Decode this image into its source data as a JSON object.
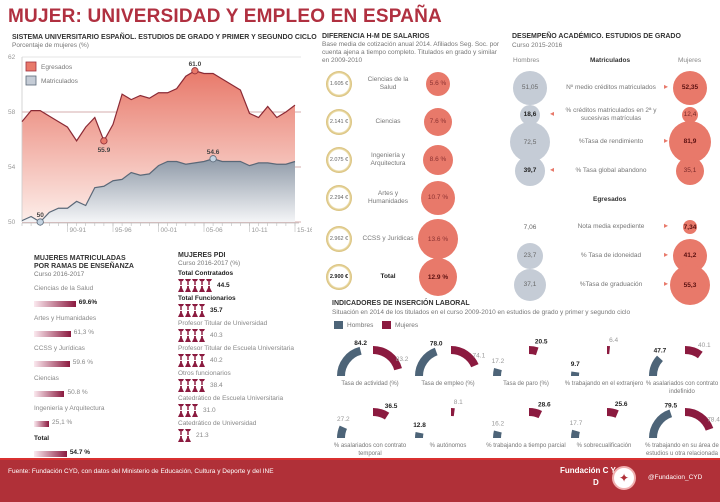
{
  "title": "MUJER: UNIVERSIDAD Y EMPLEO EN ESPAÑA",
  "colors": {
    "accent": "#b03040",
    "egresados": "#e8796a",
    "matriculados": "#8f9aa8",
    "hombres": "#4d6478",
    "mujeres": "#8b1a3f",
    "footer": "#b03038"
  },
  "section1": {
    "title": "SISTEMA UNIVERSITARIO ESPAÑOL. ESTUDIOS DE GRADO Y PRIMER Y SEGUNDO CICLO",
    "subtitle": "Porcentaje de mujeres (%)"
  },
  "chart_data": {
    "type": "area",
    "title": "SISTEMA UNIVERSITARIO ESPAÑOL. ESTUDIOS DE GRADO Y PRIMER Y SEGUNDO CICLO",
    "ylabel": "Porcentaje de mujeres (%)",
    "xlabel": "",
    "ylim": [
      50,
      62
    ],
    "yticks": [
      "62",
      "58",
      "54",
      "50"
    ],
    "ytick_values": [
      62,
      58,
      54,
      50
    ],
    "xticks": [
      "90-91",
      "95-96",
      "00-01",
      "05-06",
      "10-11",
      "15-16"
    ],
    "xtick_index": [
      5,
      10,
      15,
      20,
      25,
      30
    ],
    "grid": true,
    "legend": "top-left",
    "x": [
      "85-86",
      "86-87",
      "87-88",
      "88-89",
      "89-90",
      "90-91",
      "91-92",
      "92-93",
      "93-94",
      "94-95",
      "95-96",
      "96-97",
      "97-98",
      "98-99",
      "99-00",
      "00-01",
      "01-02",
      "02-03",
      "03-04",
      "04-05",
      "05-06",
      "06-07",
      "07-08",
      "08-09",
      "09-10",
      "10-11",
      "11-12",
      "12-13",
      "13-14",
      "14-15",
      "15-16"
    ],
    "series": [
      {
        "name": "Egresados",
        "values": [
          57.3,
          58.1,
          58.1,
          57.7,
          57.3,
          56.9,
          55.9,
          56.9,
          57.6,
          55.9,
          57.1,
          59.3,
          58.9,
          59.2,
          59.0,
          59.4,
          59.4,
          59.7,
          60.6,
          61.0,
          60.8,
          60.8,
          60.4,
          60.0,
          59.6,
          57.9,
          57.6,
          58.4,
          57.6,
          58.0,
          58.5
        ],
        "annotations": [
          {
            "index": 9,
            "label": "55.9"
          },
          {
            "index": 19,
            "label": "61.0"
          }
        ]
      },
      {
        "name": "Matriculados",
        "values": [
          50.1,
          50.4,
          50.0,
          50.7,
          51.0,
          51.0,
          51.5,
          51.2,
          52.5,
          52.6,
          53.0,
          53.1,
          53.6,
          53.4,
          53.5,
          54.1,
          54.4,
          54.4,
          54.2,
          54.3,
          54.4,
          54.6,
          54.4,
          54.4,
          54.4,
          54.1,
          54.3,
          54.3,
          54.2,
          54.2,
          54.4
        ],
        "annotations": [
          {
            "index": 2,
            "label": "50"
          },
          {
            "index": 21,
            "label": "54.6"
          }
        ]
      }
    ]
  },
  "salarios": {
    "title": "DIFERENCIA H-M DE SALARIOS",
    "subtitle": "Base media de cotización anual 2014. Afiliados Seg. Soc. por cuenta ajena a tiempo completo. Titulados en grado y similar en 2009-2010",
    "rows": [
      {
        "amount": "1.605 €",
        "label": "Ciencias de la Salud",
        "pct": "5.6 %",
        "value": 5.6,
        "bold": false
      },
      {
        "amount": "2.141 €",
        "label": "Ciencias",
        "pct": "7.6 %",
        "value": 7.6,
        "bold": false
      },
      {
        "amount": "2.075 €",
        "label": "Ingeniería y Arquitectura",
        "pct": "8.6 %",
        "value": 8.6,
        "bold": false
      },
      {
        "amount": "2.294 €",
        "label": "Artes y Humanidades",
        "pct": "10.7 %",
        "value": 10.7,
        "bold": false
      },
      {
        "amount": "2.962 €",
        "label": "CCSS y Jurídicas",
        "pct": "13.6 %",
        "value": 13.6,
        "bold": false
      },
      {
        "amount": "2.900 €",
        "label": "Total",
        "pct": "12.9 %",
        "value": 12.9,
        "bold": true
      }
    ]
  },
  "desempeno": {
    "title": "DESEMPEÑO ACADÉMICO. ESTUDIOS DE GRADO",
    "subtitle": "Curso 2015-2016",
    "col_hombres": "Hombres",
    "col_mujeres": "Mujeres",
    "group1": "Matriculados",
    "group2": "Egresados",
    "rows": [
      {
        "label": "Nº medio créditos matriculados",
        "hombres": "51,05",
        "mujeres": "52,35",
        "h_val": 51.05,
        "m_val": 52.35,
        "winner": "mujeres"
      },
      {
        "label": "% créditos matriculados en 2ª y sucesivas matrículas",
        "hombres": "18,6",
        "mujeres": "12,4",
        "h_val": 18.6,
        "m_val": 12.4,
        "winner": "hombres"
      },
      {
        "label": "%Tasa de rendimiento",
        "hombres": "72,5",
        "mujeres": "81,9",
        "h_val": 72.5,
        "m_val": 81.9,
        "winner": "mujeres"
      },
      {
        "label": "% Tasa global abandono",
        "hombres": "39,7",
        "mujeres": "35,1",
        "h_val": 39.7,
        "m_val": 35.1,
        "winner": "hombres"
      },
      {
        "label": "Nota media expediente",
        "hombres": "7,06",
        "mujeres": "7,34",
        "h_val": 7.06,
        "m_val": 7.34,
        "winner": "mujeres"
      },
      {
        "label": "% Tasa de idoneidad",
        "hombres": "23,7",
        "mujeres": "41,2",
        "h_val": 23.7,
        "m_val": 41.2,
        "winner": "mujeres"
      },
      {
        "label": "%Tasa de graduación",
        "hombres": "37,1",
        "mujeres": "55,3",
        "h_val": 37.1,
        "m_val": 55.3,
        "winner": "mujeres"
      }
    ]
  },
  "matriculadas": {
    "title_1": "MUJERES MATRICULADAS",
    "title_2": "POR RAMAS DE ENSEÑANZA",
    "subtitle": "Curso 2016-2017",
    "rows": [
      {
        "label": "Ciencias de la Salud",
        "pct": "69.6%",
        "value": 69.6,
        "bold": true
      },
      {
        "label": "Artes y Humanidades",
        "pct": "61,3 %",
        "value": 61.3,
        "bold": false
      },
      {
        "label": "CCSS y Jurídicas",
        "pct": "59.6 %",
        "value": 59.6,
        "bold": false
      },
      {
        "label": "Ciencias",
        "pct": "50.8 %",
        "value": 50.8,
        "bold": false
      },
      {
        "label": "Ingeniería y Arquitectura",
        "pct": "25,1 %",
        "value": 25.1,
        "bold": false
      },
      {
        "label": "Total",
        "pct": "54.7 %",
        "value": 54.7,
        "bold": true
      }
    ]
  },
  "pdi": {
    "title": "MUJERES PDI",
    "subtitle": "Curso 2016-2017 (%)",
    "rows": [
      {
        "label": "Total Contratados",
        "value_text": "44.5",
        "value": 44.5,
        "bold": true
      },
      {
        "label": "Total Funcionarios",
        "value_text": "35.7",
        "value": 35.7,
        "bold": true
      },
      {
        "label": "Profesor Titular de Universidad",
        "value_text": "40.3",
        "value": 40.3,
        "bold": false
      },
      {
        "label": "Profesor Titular de Escuela Universitaria",
        "value_text": "40.2",
        "value": 40.2,
        "bold": false
      },
      {
        "label": "Otros funcionarios",
        "value_text": "38.4",
        "value": 38.4,
        "bold": false
      },
      {
        "label": "Catedrático de Escuela Universitaria",
        "value_text": "31.0",
        "value": 31.0,
        "bold": false
      },
      {
        "label": "Catedrático de Universidad",
        "value_text": "21.3",
        "value": 21.3,
        "bold": false
      }
    ]
  },
  "insercion": {
    "title": "INDICADORES DE INSERCIÓN LABORAL",
    "subtitle": "Situación en 2014 de los titulados en el curso 2009-2010 en estudios de grado y primer y segundo ciclo",
    "legend_hombres": "Hombres",
    "legend_mujeres": "Mujeres",
    "gauges": [
      {
        "label": "Tasa de actividad (%)",
        "hombres": 84.2,
        "mujeres": 83.2,
        "h_text": "84.2",
        "m_text": "83.2",
        "winner": "hombres"
      },
      {
        "label": "Tasa de empleo (%)",
        "hombres": 78.0,
        "mujeres": 74.1,
        "h_text": "78.0",
        "m_text": "74.1",
        "winner": "hombres"
      },
      {
        "label": "Tasa de paro (%)",
        "hombres": 17.2,
        "mujeres": 20.5,
        "h_text": "17.2",
        "m_text": "20.5",
        "winner": "mujeres"
      },
      {
        "label": "% trabajando en el extranjero",
        "hombres": 9.7,
        "mujeres": 6.4,
        "h_text": "9.7",
        "m_text": "6.4",
        "winner": "hombres"
      },
      {
        "label": "% asalariados con contrato indefinido",
        "hombres": 47.7,
        "mujeres": 40.1,
        "h_text": "47.7",
        "m_text": "40.1",
        "winner": "hombres"
      },
      {
        "label": "% asalariados con contrato temporal",
        "hombres": 27.2,
        "mujeres": 36.5,
        "h_text": "27.2",
        "m_text": "36.5",
        "winner": "mujeres"
      },
      {
        "label": "% autónomos",
        "hombres": 12.8,
        "mujeres": 8.1,
        "h_text": "12.8",
        "m_text": "8.1",
        "winner": "hombres"
      },
      {
        "label": "% trabajando a tiempo parcial",
        "hombres": 16.2,
        "mujeres": 28.6,
        "h_text": "16.2",
        "m_text": "28.6",
        "winner": "mujeres"
      },
      {
        "label": "% sobrecualificación",
        "hombres": 17.7,
        "mujeres": 25.6,
        "h_text": "17.7",
        "m_text": "25.6",
        "winner": "mujeres"
      },
      {
        "label": "% trabajando en su área de estudios u otra relacionada",
        "hombres": 79.5,
        "mujeres": 78.4,
        "h_text": "79.5",
        "m_text": "78.4",
        "winner": "hombres"
      }
    ]
  },
  "footer": {
    "source": "Fuente: Fundación CYD, con datos del Ministerio de Educación, Cultura y Deporte y del INE",
    "brand": "Fundación  C  Y",
    "brand_d": "D",
    "twitter_icon": "twitter-bird-icon",
    "handle": "@Fundacion_CYD"
  }
}
